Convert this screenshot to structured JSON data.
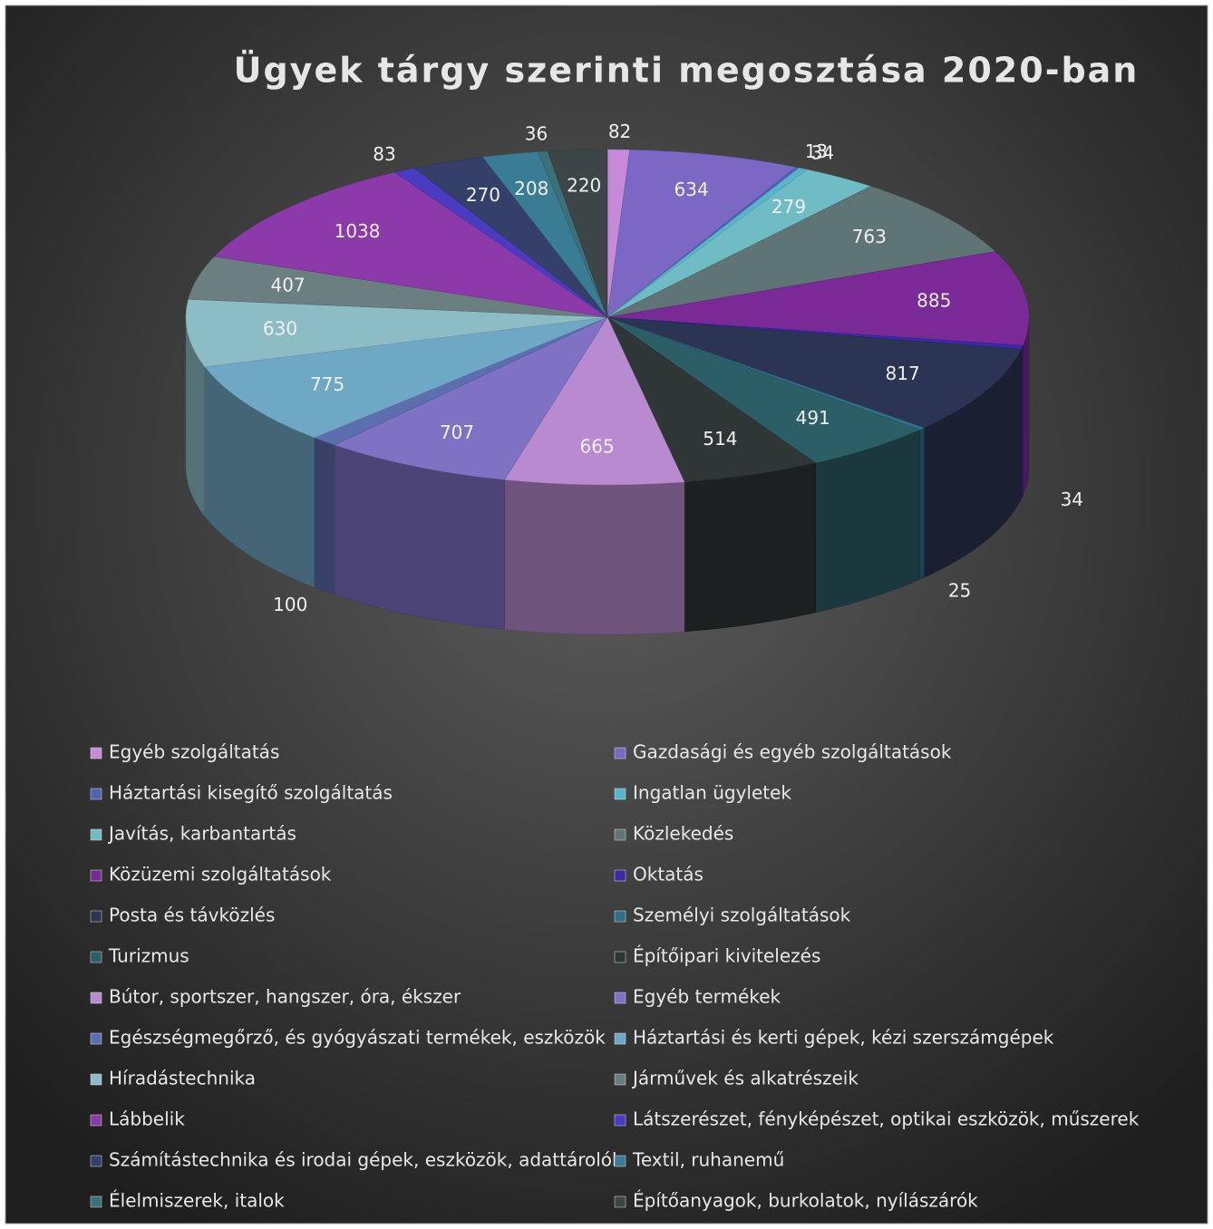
{
  "chart_data": {
    "type": "pie",
    "title": "Ügyek tárgy szerinti megosztása 2020-ban",
    "categories": [
      "Egyéb szolgáltatás",
      "Gazdasági és egyéb szolgáltatások",
      "Háztartási kisegítő szolgáltatás",
      "Ingatlan ügyletek",
      "Javítás, karbantartás",
      "Közlekedés",
      "Közüzemi szolgáltatások",
      "Oktatás",
      "Posta és távközlés",
      "Személyi szolgáltatások",
      "Turizmus",
      "Építőipari kivitelezés",
      "Bútor, sportszer, hangszer, óra, ékszer",
      "Egyéb termékek",
      "Egészségmegőrző, és gyógyászati termékek, eszközök",
      "Háztartási és kerti gépek, kézi szerszámgépek",
      "Híradástechnika",
      "Járművek és alkatrészeik",
      "Lábbelik",
      "Látszerészet, fényképészet, optikai eszközök, műszerek",
      "Számítástechnika és irodai gépek, eszközök, adattárolók",
      "Textil, ruhanemű",
      "Élelmiszerek, italok",
      "Építőanyagok, burkolatok, nyílászárók"
    ],
    "values": [
      82,
      634,
      13,
      34,
      279,
      763,
      885,
      34,
      817,
      25,
      491,
      514,
      665,
      707,
      100,
      775,
      630,
      407,
      1038,
      83,
      270,
      208,
      36,
      220
    ],
    "colors": [
      "#c58bd8",
      "#7a68c4",
      "#4f63b0",
      "#58b4cc",
      "#6fbcc4",
      "#5f7575",
      "#7a2a96",
      "#3b2aa8",
      "#2b3452",
      "#2e7088",
      "#2c5e66",
      "#2e3636",
      "#b88ad0",
      "#7f72c4",
      "#5d6eae",
      "#6fa8c4",
      "#8cbcc4",
      "#6b7e80",
      "#8c3aaa",
      "#4a3cc0",
      "#34406a",
      "#3a7c94",
      "#3a7078",
      "#3c4646"
    ]
  }
}
